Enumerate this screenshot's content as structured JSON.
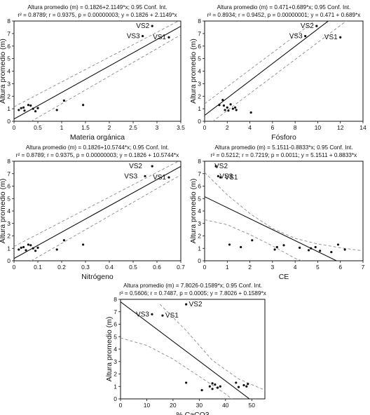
{
  "chart_data": [
    {
      "type": "scatter",
      "title": "Altura promedio (m) = 0.1826+2.1149*x; 0.95 Conf. Int.",
      "subtitle": "r² = 0.8789; r = 0.9375, p = 0.00000003; y = 0.1826 + 2.1149*x",
      "xlabel": "Materia orgánica",
      "ylabel": "Altura promedio (m)",
      "xlim": [
        0,
        3.5
      ],
      "ylim": [
        0,
        8
      ],
      "xticks": [
        "0",
        "0.5",
        "1",
        "1.5",
        "2",
        "2.5",
        "3",
        "3.5"
      ],
      "yticks": [
        "0",
        "1",
        "2",
        "3",
        "4",
        "5",
        "6",
        "7",
        "8"
      ],
      "fit": {
        "intercept": 0.1826,
        "slope": 2.1149
      },
      "ci_upper": [
        [
          0,
          1.15
        ],
        [
          3.5,
          8.1
        ]
      ],
      "ci_lower": [
        [
          0,
          -0.8
        ],
        [
          3.5,
          6.9
        ]
      ],
      "points": [
        [
          0.1,
          0.9
        ],
        [
          0.15,
          1.05
        ],
        [
          0.2,
          1.1
        ],
        [
          0.22,
          0.85
        ],
        [
          0.3,
          1.3
        ],
        [
          0.35,
          1.25
        ],
        [
          0.4,
          1.0
        ],
        [
          0.45,
          0.8
        ],
        [
          0.5,
          1.05
        ],
        [
          0.9,
          0.9
        ],
        [
          1.05,
          1.65
        ],
        [
          1.45,
          1.3
        ],
        [
          2.7,
          6.8
        ],
        [
          2.9,
          7.6
        ],
        [
          3.25,
          6.7
        ]
      ],
      "labels": [
        {
          "text": "VS2",
          "x": 2.9,
          "y": 7.6
        },
        {
          "text": "VS3",
          "x": 2.7,
          "y": 6.8
        },
        {
          "text": "VS1",
          "x": 3.25,
          "y": 6.7
        }
      ]
    },
    {
      "type": "scatter",
      "title": "Altura promedio (m) = 0.471+0.689*x; 0.95 Conf. Int.",
      "subtitle": "r² = 0.8934; r = 0.9452, p = 0.00000001; y = 0.471 + 0.689*x",
      "xlabel": "Fósforo",
      "ylabel": "Altura promedio (m)",
      "xlim": [
        0,
        14
      ],
      "ylim": [
        0,
        8
      ],
      "xticks": [
        "0",
        "2",
        "4",
        "6",
        "8",
        "10",
        "12",
        "14"
      ],
      "yticks": [
        "0",
        "1",
        "2",
        "3",
        "4",
        "5",
        "6",
        "7",
        "8"
      ],
      "fit": {
        "intercept": 0.471,
        "slope": 0.689
      },
      "ci_upper": [
        [
          0,
          1.4
        ],
        [
          14,
          10.9
        ]
      ],
      "ci_lower": [
        [
          0,
          -0.5
        ],
        [
          14,
          9.0
        ]
      ],
      "points": [
        [
          1.3,
          1.3
        ],
        [
          1.6,
          1.7
        ],
        [
          1.7,
          1.25
        ],
        [
          1.8,
          0.9
        ],
        [
          2.0,
          1.1
        ],
        [
          2.1,
          0.85
        ],
        [
          2.3,
          1.35
        ],
        [
          2.5,
          1.0
        ],
        [
          2.7,
          1.1
        ],
        [
          2.8,
          0.9
        ],
        [
          4.1,
          0.7
        ],
        [
          8.9,
          6.8
        ],
        [
          9.9,
          7.6
        ],
        [
          12.0,
          6.7
        ]
      ],
      "labels": [
        {
          "text": "VS2",
          "x": 9.9,
          "y": 7.6
        },
        {
          "text": "VS3",
          "x": 8.9,
          "y": 6.8
        },
        {
          "text": "VS1",
          "x": 12.0,
          "y": 6.7
        }
      ]
    },
    {
      "type": "scatter",
      "title": "Altura promedio (m) = 0.1826+10.5744*x; 0.95 Conf. Int.",
      "subtitle": "r² = 0.8789; r = 0.9375, p = 0.00000003; y = 0.1826 + 10.5744*x",
      "xlabel": "Nitrógeno",
      "ylabel": "Altura promedio (m)",
      "xlim": [
        0,
        0.7
      ],
      "ylim": [
        0,
        8
      ],
      "xticks": [
        "0",
        "0.1",
        "0.2",
        "0.3",
        "0.4",
        "0.5",
        "0.6",
        "0.7"
      ],
      "yticks": [
        "0",
        "1",
        "2",
        "3",
        "4",
        "5",
        "6",
        "7",
        "8"
      ],
      "fit": {
        "intercept": 0.1826,
        "slope": 10.5744
      },
      "ci_upper": [
        [
          0,
          1.15
        ],
        [
          0.7,
          8.1
        ]
      ],
      "ci_lower": [
        [
          0,
          -0.8
        ],
        [
          0.7,
          6.9
        ]
      ],
      "points": [
        [
          0.02,
          0.9
        ],
        [
          0.03,
          1.05
        ],
        [
          0.04,
          1.1
        ],
        [
          0.05,
          0.85
        ],
        [
          0.06,
          1.3
        ],
        [
          0.07,
          1.25
        ],
        [
          0.08,
          1.0
        ],
        [
          0.09,
          0.8
        ],
        [
          0.1,
          1.05
        ],
        [
          0.18,
          0.9
        ],
        [
          0.21,
          1.65
        ],
        [
          0.29,
          1.3
        ],
        [
          0.55,
          6.8
        ],
        [
          0.58,
          7.6
        ],
        [
          0.65,
          6.7
        ]
      ],
      "labels": [
        {
          "text": "VS2",
          "x": 0.55,
          "y": 7.6
        },
        {
          "text": "VS3",
          "x": 0.53,
          "y": 6.8
        },
        {
          "text": "VS1",
          "x": 0.65,
          "y": 6.7
        }
      ]
    },
    {
      "type": "scatter",
      "title": "Altura promedio (m) = 5.1511-0.8833*x; 0.95 Conf. Int.",
      "subtitle": "r² = 0.5212; r = 0.7219; p = 0.0011; y = 5.1511 + 0.8833*x",
      "xlabel": "CE",
      "ylabel": "Altura promedio (m)",
      "xlim": [
        0,
        7
      ],
      "ylim": [
        0,
        8
      ],
      "xticks": [
        "0",
        "1",
        "2",
        "3",
        "4",
        "5",
        "6",
        "7"
      ],
      "yticks": [
        "0",
        "1",
        "2",
        "3",
        "4",
        "5",
        "6",
        "7",
        "8"
      ],
      "fit": {
        "intercept": 5.1511,
        "slope": -0.8833
      },
      "ci_upper": [
        [
          0,
          7.1
        ],
        [
          1,
          5.3
        ],
        [
          2,
          3.8
        ],
        [
          3,
          2.6
        ],
        [
          4,
          1.8
        ],
        [
          5,
          1.35
        ],
        [
          6,
          1.05
        ],
        [
          7,
          0.8
        ]
      ],
      "ci_lower": [
        [
          0,
          3.3
        ],
        [
          1,
          2.9
        ],
        [
          2,
          2.1
        ],
        [
          3,
          1.2
        ],
        [
          4,
          0.2
        ],
        [
          4.7,
          -0.3
        ]
      ],
      "points": [
        [
          0.5,
          7.6
        ],
        [
          0.6,
          6.8
        ],
        [
          0.7,
          6.7
        ],
        [
          1.1,
          1.3
        ],
        [
          1.6,
          1.1
        ],
        [
          2.1,
          1.65
        ],
        [
          3.1,
          0.9
        ],
        [
          3.2,
          1.1
        ],
        [
          3.5,
          1.25
        ],
        [
          4.2,
          1.05
        ],
        [
          4.6,
          0.85
        ],
        [
          4.7,
          1.0
        ],
        [
          4.9,
          1.1
        ],
        [
          5.1,
          0.8
        ],
        [
          5.6,
          0.7
        ],
        [
          5.9,
          1.3
        ],
        [
          6.2,
          0.9
        ]
      ],
      "labels": [
        {
          "text": "VS2",
          "x": 0.5,
          "y": 7.6
        },
        {
          "text": "VS3",
          "x": 0.6,
          "y": 6.8
        },
        {
          "text": "VS1",
          "x": 0.7,
          "y": 6.7
        }
      ]
    },
    {
      "type": "scatter",
      "title": "Altura promedio (m) = 7.8026-0.1589*x; 0.95 Conf. Int.",
      "subtitle": "r² = 0.5606; r = 0.7487, p = 0.0005; y = 7.8026 + 0.1589*x",
      "xlabel": "% CaCO3",
      "ylabel": "Altura promedio (m)",
      "xlim": [
        0,
        55
      ],
      "ylim": [
        0,
        8
      ],
      "xticks": [
        "0",
        "10",
        "20",
        "30",
        "40",
        "50"
      ],
      "yticks": [
        "0",
        "1",
        "2",
        "3",
        "4",
        "5",
        "6",
        "7",
        "8"
      ],
      "fit": {
        "intercept": 7.8026,
        "slope": -0.1589
      },
      "ci_upper": [
        [
          15,
          7.6
        ],
        [
          25,
          5.5
        ],
        [
          35,
          3.1
        ],
        [
          45,
          1.6
        ],
        [
          55,
          0.7
        ]
      ],
      "ci_lower": [
        [
          0,
          4.9
        ],
        [
          10,
          4.3
        ],
        [
          20,
          3.2
        ],
        [
          30,
          1.8
        ],
        [
          40,
          0.4
        ],
        [
          43,
          -0.1
        ]
      ],
      "points": [
        [
          12,
          6.8
        ],
        [
          16,
          6.7
        ],
        [
          25,
          7.6
        ],
        [
          25,
          1.3
        ],
        [
          31,
          0.7
        ],
        [
          34,
          1.0
        ],
        [
          35,
          1.25
        ],
        [
          35,
          0.8
        ],
        [
          36,
          1.15
        ],
        [
          37,
          0.9
        ],
        [
          38,
          1.0
        ],
        [
          44,
          1.3
        ],
        [
          45,
          0.95
        ],
        [
          47,
          1.1
        ],
        [
          48,
          1.0
        ],
        [
          48.5,
          1.2
        ]
      ],
      "labels": [
        {
          "text": "VS3",
          "x": 12,
          "y": 6.8
        },
        {
          "text": "VS1",
          "x": 16,
          "y": 6.7
        },
        {
          "text": "VS2",
          "x": 25,
          "y": 7.6
        }
      ]
    }
  ]
}
